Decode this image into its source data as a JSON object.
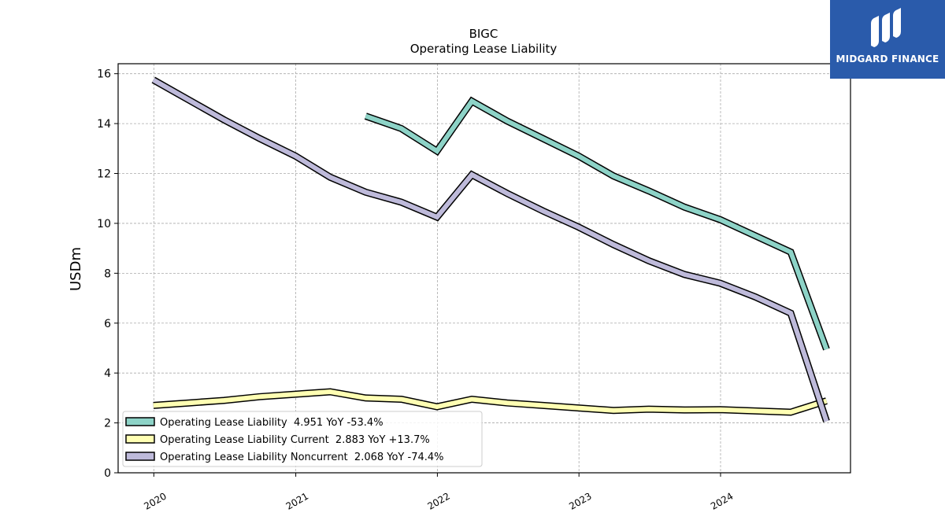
{
  "chart_data": {
    "type": "line",
    "title": "BIGC",
    "subtitle": "Operating Lease Liability",
    "xlabel": "",
    "ylabel": "USDm",
    "xlim": [
      "2019-10-01",
      "2024-12-01"
    ],
    "ylim": [
      0,
      16.4
    ],
    "x_ticks": [
      "2020",
      "2021",
      "2022",
      "2023",
      "2024"
    ],
    "y_ticks": [
      "0",
      "2",
      "4",
      "6",
      "8",
      "10",
      "12",
      "14",
      "16"
    ],
    "grid": true,
    "legend_position": "lower-left",
    "series": [
      {
        "name": "Operating Lease Liability",
        "legend_label": "Operating Lease Liability  4.951 YoY -53.4%",
        "color": "#8dd3c7",
        "x": [
          "2021-06-30",
          "2021-09-30",
          "2021-12-31",
          "2022-03-31",
          "2022-06-30",
          "2022-09-30",
          "2022-12-31",
          "2023-03-31",
          "2023-06-30",
          "2023-09-30",
          "2023-12-31",
          "2024-03-31",
          "2024-06-30",
          "2024-09-30"
        ],
        "values": [
          14.3,
          13.8,
          12.9,
          14.9,
          14.1,
          13.4,
          12.7,
          11.9,
          11.3,
          10.65,
          10.15,
          9.5,
          8.85,
          4.951
        ]
      },
      {
        "name": "Operating Lease Liability Current",
        "legend_label": "Operating Lease Liability Current  2.883 YoY +13.7%",
        "color": "#ffffb3",
        "x": [
          "2019-12-31",
          "2020-03-31",
          "2020-06-30",
          "2020-09-30",
          "2020-12-31",
          "2021-03-31",
          "2021-06-30",
          "2021-09-30",
          "2021-12-31",
          "2022-03-31",
          "2022-06-30",
          "2022-09-30",
          "2022-12-31",
          "2023-03-31",
          "2023-06-30",
          "2023-09-30",
          "2023-12-31",
          "2024-03-31",
          "2024-06-30",
          "2024-09-30"
        ],
        "values": [
          2.7,
          2.8,
          2.9,
          3.05,
          3.15,
          3.25,
          3.0,
          2.95,
          2.65,
          2.95,
          2.8,
          2.7,
          2.6,
          2.5,
          2.55,
          2.52,
          2.53,
          2.48,
          2.43,
          2.883
        ]
      },
      {
        "name": "Operating Lease Liability Noncurrent",
        "legend_label": "Operating Lease Liability Noncurrent  2.068 YoY -74.4%",
        "color": "#bebada",
        "x": [
          "2019-12-31",
          "2020-03-31",
          "2020-06-30",
          "2020-09-30",
          "2020-12-31",
          "2021-03-31",
          "2021-06-30",
          "2021-09-30",
          "2021-12-31",
          "2022-03-31",
          "2022-06-30",
          "2022-09-30",
          "2022-12-31",
          "2023-03-31",
          "2023-06-30",
          "2023-09-30",
          "2023-12-31",
          "2024-03-31",
          "2024-06-30",
          "2024-09-30"
        ],
        "values": [
          15.75,
          14.95,
          14.15,
          13.4,
          12.7,
          11.85,
          11.25,
          10.85,
          10.25,
          11.95,
          11.2,
          10.5,
          9.85,
          9.15,
          8.5,
          7.95,
          7.6,
          7.05,
          6.4,
          2.068
        ]
      }
    ]
  },
  "logo": {
    "text": "MIDGARD FINANCE",
    "color": "#2a5bab"
  }
}
